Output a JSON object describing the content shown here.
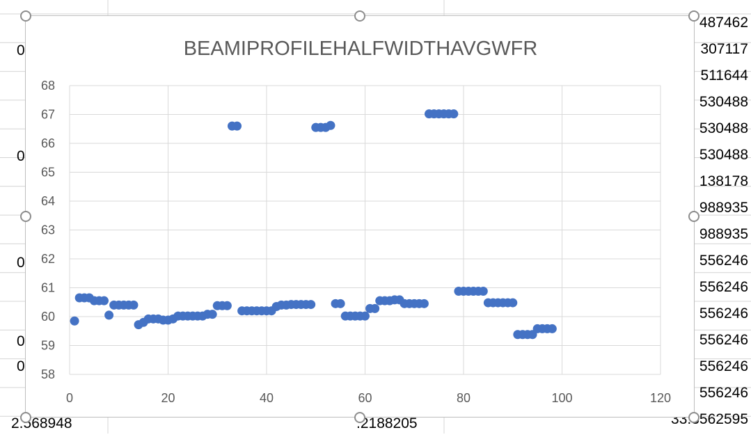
{
  "sheet": {
    "right_column": [
      "487462",
      "307117",
      "511644",
      "530488",
      "530488",
      "530488",
      "138178",
      "988935",
      "988935",
      "556246",
      "556246",
      "556246",
      "556246",
      "556246",
      "556246",
      "33.3562595"
    ],
    "left_column": [
      "0",
      "0",
      "0",
      "0",
      "0"
    ],
    "bottom_left": "2.568948",
    "bottom_mid": ".2188205"
  },
  "chart_data": {
    "type": "scatter",
    "title": "BEAMIPROFILEHALFWIDTHAVGWFR",
    "xlabel": "",
    "ylabel": "",
    "xlim": [
      0,
      120
    ],
    "ylim": [
      58,
      68
    ],
    "xticks": [
      0,
      20,
      40,
      60,
      80,
      100,
      120
    ],
    "yticks": [
      58,
      59,
      60,
      61,
      62,
      63,
      64,
      65,
      66,
      67,
      68
    ],
    "grid": true,
    "marker_color": "#4472C4",
    "series": [
      {
        "x": [
          1,
          2,
          3,
          4,
          5,
          6,
          7,
          8,
          9,
          10,
          11,
          12,
          13,
          14,
          15,
          16,
          17,
          18,
          19,
          20,
          21,
          22,
          23,
          24,
          25,
          26,
          27,
          28,
          29,
          30,
          31,
          32,
          33,
          34,
          35,
          36,
          37,
          38,
          39,
          40,
          41,
          42,
          43,
          44,
          45,
          46,
          47,
          48,
          49,
          50,
          51,
          52,
          53,
          54,
          55,
          56,
          57,
          58,
          59,
          60,
          61,
          62,
          63,
          64,
          65,
          66,
          67,
          68,
          69,
          70,
          71,
          72,
          73,
          74,
          75,
          76,
          77,
          78,
          79,
          80,
          81,
          82,
          83,
          84,
          85,
          86,
          87,
          88,
          89,
          90,
          91,
          92,
          93,
          94,
          95,
          96,
          97,
          98
        ],
        "y": [
          59.85,
          60.65,
          60.65,
          60.65,
          60.55,
          60.55,
          60.55,
          60.05,
          60.4,
          60.4,
          60.4,
          60.4,
          60.4,
          59.72,
          59.8,
          59.92,
          59.92,
          59.92,
          59.88,
          59.88,
          59.92,
          60.02,
          60.02,
          60.02,
          60.02,
          60.02,
          60.02,
          60.08,
          60.08,
          60.38,
          60.38,
          60.38,
          66.6,
          66.6,
          60.2,
          60.2,
          60.2,
          60.2,
          60.2,
          60.2,
          60.2,
          60.35,
          60.4,
          60.4,
          60.42,
          60.42,
          60.42,
          60.42,
          60.42,
          66.55,
          66.55,
          66.55,
          66.62,
          60.45,
          60.45,
          60.02,
          60.02,
          60.02,
          60.02,
          60.02,
          60.28,
          60.28,
          60.55,
          60.55,
          60.55,
          60.58,
          60.58,
          60.45,
          60.45,
          60.45,
          60.45,
          60.45,
          67.02,
          67.02,
          67.02,
          67.02,
          67.02,
          67.02,
          60.88,
          60.88,
          60.88,
          60.88,
          60.88,
          60.88,
          60.48,
          60.48,
          60.48,
          60.48,
          60.48,
          60.48,
          59.38,
          59.38,
          59.38,
          59.38,
          59.58,
          59.58,
          59.58,
          59.58
        ]
      }
    ]
  }
}
